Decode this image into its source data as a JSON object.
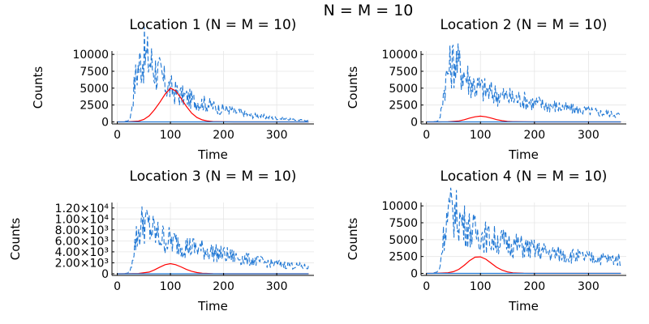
{
  "figure": {
    "title": "N = M = 10"
  },
  "chart_data": [
    {
      "type": "line",
      "title": "Location 1 (N = M = 10)",
      "xlabel": "Time",
      "ylabel": "Counts",
      "xlim": [
        -10,
        370
      ],
      "ylim": [
        -300,
        10500
      ],
      "xticks": [
        0,
        100,
        200,
        300
      ],
      "xtick_labels": [
        "0",
        "100",
        "200",
        "300"
      ],
      "yticks": [
        0,
        2500,
        5000,
        7500,
        10000
      ],
      "ytick_labels": [
        "0",
        "2500",
        "5000",
        "7500",
        "10000"
      ],
      "grid": true,
      "legend": "none",
      "series": [
        {
          "style": "dashed",
          "color": "#1f77d4",
          "x": [
            0,
            10,
            20,
            25,
            30,
            35,
            40,
            45,
            50,
            55,
            60,
            65,
            70,
            75,
            80,
            85,
            90,
            95,
            100,
            105,
            110,
            115,
            120,
            130,
            140,
            150,
            160,
            170,
            180,
            190,
            200,
            210,
            220,
            230,
            240,
            250,
            260,
            270,
            280,
            290,
            300,
            310,
            320,
            330,
            340,
            350,
            360
          ],
          "y": [
            0,
            0,
            150,
            700,
            4200,
            6800,
            8300,
            9200,
            9800,
            9400,
            9100,
            8600,
            8000,
            7400,
            6900,
            6200,
            5700,
            5200,
            4900,
            4700,
            4300,
            4100,
            3900,
            3600,
            3300,
            3000,
            2800,
            2600,
            2300,
            2000,
            1900,
            1800,
            1500,
            1400,
            1200,
            1000,
            900,
            850,
            700,
            600,
            550,
            450,
            400,
            320,
            280,
            250,
            200
          ]
        },
        {
          "style": "solid",
          "color": "#ff0000",
          "x": [
            0,
            20,
            40,
            50,
            60,
            70,
            80,
            90,
            100,
            110,
            120,
            130,
            140,
            150,
            160,
            170,
            180,
            200,
            220,
            260,
            300,
            360
          ],
          "y": [
            0,
            10,
            120,
            360,
            900,
            1800,
            2900,
            4100,
            5000,
            4600,
            3500,
            2300,
            1300,
            650,
            300,
            130,
            50,
            10,
            0,
            0,
            0,
            0
          ]
        },
        {
          "style": "solid",
          "color": "#1f77d4",
          "x": [
            0,
            360
          ],
          "y": [
            0,
            0
          ]
        }
      ]
    },
    {
      "type": "line",
      "title": "Location 2 (N = M = 10)",
      "xlabel": "Time",
      "ylabel": "Counts",
      "xlim": [
        -10,
        370
      ],
      "ylim": [
        -300,
        10500
      ],
      "xticks": [
        0,
        100,
        200,
        300
      ],
      "xtick_labels": [
        "0",
        "100",
        "200",
        "300"
      ],
      "yticks": [
        0,
        2500,
        5000,
        7500,
        10000
      ],
      "ytick_labels": [
        "0",
        "2500",
        "5000",
        "7500",
        "10000"
      ],
      "grid": true,
      "legend": "none",
      "series": [
        {
          "style": "dashed",
          "color": "#1f77d4",
          "x": [
            0,
            10,
            20,
            25,
            30,
            35,
            40,
            45,
            50,
            55,
            60,
            65,
            70,
            75,
            80,
            85,
            90,
            95,
            100,
            105,
            110,
            115,
            120,
            130,
            140,
            150,
            160,
            170,
            180,
            190,
            200,
            210,
            220,
            230,
            240,
            250,
            260,
            270,
            280,
            290,
            300,
            310,
            320,
            330,
            340,
            350,
            360
          ],
          "y": [
            0,
            0,
            100,
            500,
            3500,
            5800,
            7400,
            8200,
            9000,
            8800,
            8200,
            7800,
            7200,
            6600,
            6200,
            5800,
            5400,
            5200,
            5000,
            4800,
            4600,
            4400,
            4300,
            4100,
            3900,
            3700,
            3500,
            3400,
            3200,
            3000,
            2800,
            2700,
            2500,
            2400,
            2300,
            2200,
            2000,
            1900,
            1800,
            1700,
            1600,
            1500,
            1400,
            1300,
            1200,
            1100,
            1000
          ]
        },
        {
          "style": "solid",
          "color": "#ff0000",
          "x": [
            0,
            20,
            40,
            60,
            70,
            80,
            90,
            100,
            110,
            120,
            130,
            140,
            150,
            160,
            180,
            200,
            240,
            300,
            360
          ],
          "y": [
            0,
            5,
            30,
            150,
            330,
            560,
            760,
            850,
            760,
            560,
            340,
            180,
            80,
            35,
            8,
            0,
            0,
            0,
            0
          ]
        },
        {
          "style": "solid",
          "color": "#1f77d4",
          "x": [
            0,
            360
          ],
          "y": [
            0,
            0
          ]
        }
      ]
    },
    {
      "type": "line",
      "title": "Location 3 (N = M = 10)",
      "xlabel": "Time",
      "ylabel": "Counts",
      "xlim": [
        -10,
        370
      ],
      "ylim": [
        -300,
        13000
      ],
      "xticks": [
        0,
        100,
        200,
        300
      ],
      "xtick_labels": [
        "0",
        "100",
        "200",
        "300"
      ],
      "yticks": [
        0,
        2000,
        4000,
        6000,
        8000,
        10000,
        12000
      ],
      "ytick_labels": [
        "0",
        "2.00×10³",
        "4.00×10³",
        "6.00×10³",
        "8.00×10³",
        "1.00×10⁴",
        "1.20×10⁴"
      ],
      "grid": true,
      "legend": "none",
      "series": [
        {
          "style": "dashed",
          "color": "#1f77d4",
          "x": [
            0,
            10,
            20,
            25,
            30,
            35,
            40,
            45,
            50,
            55,
            60,
            65,
            70,
            75,
            80,
            85,
            90,
            95,
            100,
            105,
            110,
            115,
            120,
            130,
            140,
            150,
            160,
            170,
            180,
            190,
            200,
            210,
            220,
            230,
            240,
            250,
            260,
            270,
            280,
            290,
            300,
            310,
            320,
            330,
            340,
            350,
            360
          ],
          "y": [
            0,
            0,
            100,
            600,
            3800,
            6200,
            7600,
            8600,
            9800,
            8900,
            8300,
            7900,
            7400,
            7000,
            6700,
            6500,
            6300,
            6100,
            6000,
            5800,
            5600,
            5500,
            5300,
            5000,
            4800,
            4600,
            4400,
            4200,
            3900,
            3700,
            3500,
            3300,
            3100,
            2900,
            2700,
            2500,
            2300,
            2200,
            2000,
            1900,
            1800,
            1700,
            1600,
            1500,
            1400,
            1300,
            1200
          ]
        },
        {
          "style": "solid",
          "color": "#ff0000",
          "x": [
            0,
            20,
            40,
            60,
            70,
            80,
            90,
            100,
            110,
            120,
            130,
            140,
            150,
            160,
            180,
            200,
            240,
            300,
            360
          ],
          "y": [
            0,
            10,
            60,
            300,
            700,
            1200,
            1650,
            1850,
            1650,
            1250,
            800,
            450,
            220,
            100,
            20,
            0,
            0,
            0,
            0
          ]
        },
        {
          "style": "solid",
          "color": "#1f77d4",
          "x": [
            0,
            360
          ],
          "y": [
            0,
            0
          ]
        }
      ]
    },
    {
      "type": "line",
      "title": "Location 4 (N = M = 10)",
      "xlabel": "Time",
      "ylabel": "Counts",
      "xlim": [
        -10,
        370
      ],
      "ylim": [
        -300,
        10500
      ],
      "xticks": [
        0,
        100,
        200,
        300
      ],
      "xtick_labels": [
        "0",
        "100",
        "200",
        "300"
      ],
      "yticks": [
        0,
        2500,
        5000,
        7500,
        10000
      ],
      "ytick_labels": [
        "0",
        "2500",
        "5000",
        "7500",
        "10000"
      ],
      "grid": true,
      "legend": "none",
      "series": [
        {
          "style": "dashed",
          "color": "#1f77d4",
          "x": [
            0,
            10,
            20,
            25,
            30,
            35,
            40,
            45,
            50,
            55,
            60,
            65,
            70,
            75,
            80,
            85,
            90,
            95,
            100,
            105,
            110,
            115,
            120,
            130,
            140,
            150,
            160,
            170,
            180,
            190,
            200,
            210,
            220,
            230,
            240,
            250,
            260,
            270,
            280,
            290,
            300,
            310,
            320,
            330,
            340,
            350,
            360
          ],
          "y": [
            0,
            0,
            200,
            900,
            4500,
            7000,
            8600,
            9100,
            9300,
            8700,
            8200,
            7800,
            7300,
            6900,
            6600,
            6300,
            6100,
            5900,
            5800,
            5600,
            5400,
            5200,
            5100,
            4900,
            4700,
            4500,
            4300,
            4100,
            3900,
            3700,
            3500,
            3300,
            3200,
            3000,
            2900,
            2800,
            2700,
            2600,
            2500,
            2400,
            2300,
            2300,
            2200,
            2200,
            2100,
            2100,
            2000
          ]
        },
        {
          "style": "solid",
          "color": "#ff0000",
          "x": [
            0,
            20,
            40,
            50,
            60,
            70,
            80,
            90,
            100,
            110,
            120,
            130,
            140,
            150,
            160,
            180,
            200,
            240,
            300,
            360
          ],
          "y": [
            0,
            10,
            100,
            250,
            600,
            1200,
            1900,
            2400,
            2450,
            2100,
            1500,
            900,
            480,
            220,
            90,
            15,
            0,
            0,
            0,
            0
          ]
        },
        {
          "style": "solid",
          "color": "#1f77d4",
          "x": [
            0,
            360
          ],
          "y": [
            0,
            0
          ]
        }
      ]
    }
  ]
}
